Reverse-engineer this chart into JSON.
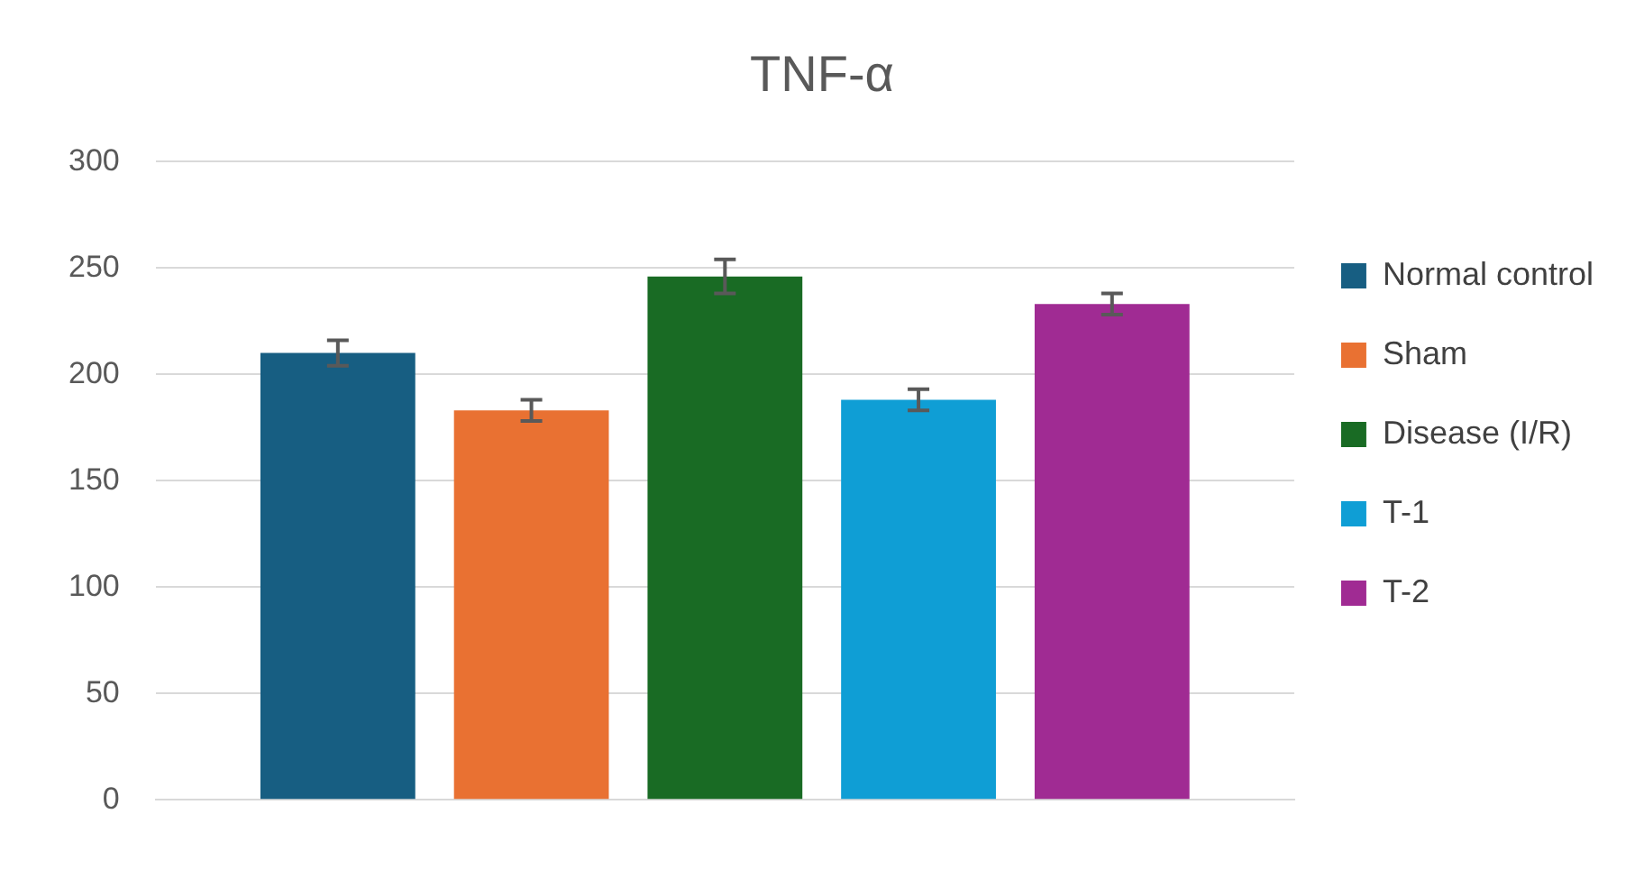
{
  "chart_data": {
    "type": "bar",
    "title": "TNF-α",
    "categories": [
      null
    ],
    "series": [
      {
        "name": "Normal control",
        "color": "#175e82",
        "values": [
          210
        ],
        "errors": [
          6
        ]
      },
      {
        "name": "Sham",
        "color": "#e97132",
        "values": [
          183
        ],
        "errors": [
          5
        ]
      },
      {
        "name": "Disease (I/R)",
        "color": "#196b24",
        "values": [
          246
        ],
        "errors": [
          8
        ]
      },
      {
        "name": "T-1",
        "color": "#0f9ed5",
        "values": [
          188
        ],
        "errors": [
          5
        ]
      },
      {
        "name": "T-2",
        "color": "#a02b93",
        "values": [
          233
        ],
        "errors": [
          5
        ]
      }
    ],
    "ylim": [
      0,
      300
    ],
    "yticks": [
      0,
      50,
      100,
      150,
      200,
      250,
      300
    ],
    "grid": "y",
    "legend": "right"
  }
}
